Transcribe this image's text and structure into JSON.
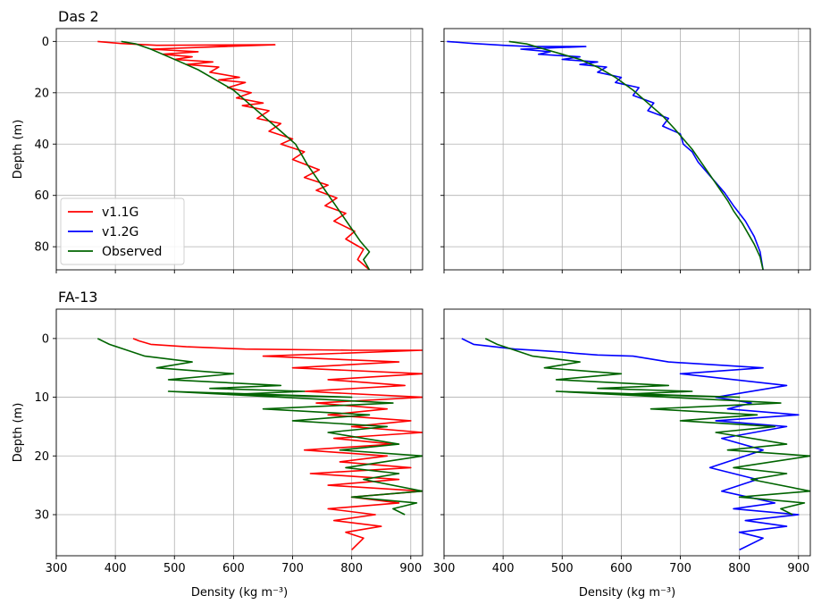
{
  "colors": {
    "v11": "#ff0000",
    "v12": "#0000ff",
    "observed": "#006400",
    "grid": "#b0b0b0",
    "axis": "#000000"
  },
  "legend": {
    "placement": "lower-left",
    "panel": 0,
    "entries": [
      {
        "label": "v1.1G",
        "color": "#ff0000"
      },
      {
        "label": "v1.2G",
        "color": "#0000ff"
      },
      {
        "label": "Observed",
        "color": "#006400"
      }
    ]
  },
  "chart_data": [
    {
      "type": "line",
      "title": "Das 2",
      "xlabel": "",
      "ylabel": "Depth (m)",
      "xlim": [
        300,
        920
      ],
      "ylim": [
        89,
        -5
      ],
      "xticks": [],
      "yticks": [
        "0",
        "20",
        "40",
        "60",
        "80"
      ],
      "grid": true,
      "series": [
        {
          "name": "v1.1G",
          "color": "#ff0000",
          "x": [
            370,
            410,
            470,
            670,
            460,
            540,
            480,
            530,
            500,
            565,
            520,
            575,
            560,
            610,
            575,
            620,
            590,
            630,
            605,
            650,
            615,
            660,
            640,
            680,
            660,
            700,
            680,
            720,
            700,
            745,
            720,
            760,
            740,
            775,
            755,
            790,
            770,
            805,
            790,
            820,
            810,
            830
          ],
          "y": [
            0,
            0.8,
            1.5,
            1.3,
            3,
            4,
            5,
            6,
            7,
            8,
            9,
            10,
            12,
            14,
            15,
            16,
            18,
            20,
            22,
            24,
            25,
            27,
            30,
            32,
            35,
            38,
            40,
            43,
            46,
            50,
            53,
            56,
            58,
            61,
            64,
            67,
            70,
            74,
            77,
            81,
            85,
            89
          ]
        },
        {
          "name": "v1.2G",
          "color": "#0000ff",
          "x": [],
          "y": []
        },
        {
          "name": "Observed",
          "color": "#006400",
          "x": [
            410,
            435,
            460,
            480,
            510,
            540,
            570,
            600,
            625,
            650,
            670,
            690,
            705,
            715,
            725,
            740,
            755,
            770,
            785,
            800,
            815,
            830,
            820,
            830
          ],
          "y": [
            0,
            1,
            3,
            5,
            8,
            11,
            15,
            19,
            24,
            29,
            33,
            37,
            40,
            44,
            48,
            53,
            58,
            63,
            68,
            73,
            78,
            82,
            85,
            89
          ]
        }
      ]
    },
    {
      "type": "line",
      "title": "",
      "xlabel": "",
      "ylabel": "",
      "xlim": [
        300,
        920
      ],
      "ylim": [
        89,
        -5
      ],
      "xticks": [],
      "yticks": [],
      "grid": true,
      "series": [
        {
          "name": "v1.1G",
          "color": "#ff0000",
          "x": [],
          "y": []
        },
        {
          "name": "v1.2G",
          "color": "#0000ff",
          "x": [
            305,
            350,
            400,
            445,
            540,
            430,
            480,
            460,
            530,
            500,
            560,
            530,
            575,
            560,
            600,
            590,
            630,
            620,
            655,
            645,
            680,
            670,
            700,
            705,
            720,
            730,
            745,
            760,
            775,
            790,
            810,
            825,
            835,
            840
          ],
          "y": [
            0,
            0.8,
            1.5,
            2,
            2,
            3,
            4,
            5,
            6,
            7,
            8,
            9,
            10,
            12,
            14,
            16,
            18,
            21,
            24,
            27,
            30,
            33,
            36,
            40,
            43,
            47,
            51,
            55,
            59,
            64,
            70,
            76,
            82,
            89
          ]
        },
        {
          "name": "Observed",
          "color": "#006400",
          "x": [
            410,
            440,
            470,
            500,
            530,
            560,
            590,
            620,
            645,
            670,
            690,
            705,
            720,
            735,
            750,
            765,
            780,
            790,
            805,
            815,
            825,
            835,
            840
          ],
          "y": [
            0,
            1,
            3,
            5,
            7,
            10,
            14,
            19,
            24,
            29,
            34,
            38,
            42,
            47,
            52,
            57,
            62,
            66,
            71,
            75,
            79,
            84,
            89
          ]
        }
      ]
    },
    {
      "type": "line",
      "title": "FA-13",
      "xlabel": "Density (kg m⁻³)",
      "ylabel": "Depth (m)",
      "xlim": [
        300,
        920
      ],
      "ylim": [
        37,
        -5
      ],
      "xticks": [
        "300",
        "400",
        "500",
        "600",
        "700",
        "800",
        "900"
      ],
      "yticks": [
        "0",
        "10",
        "20",
        "30"
      ],
      "grid": true,
      "series": [
        {
          "name": "v1.1G",
          "color": "#ff0000",
          "x": [
            430,
            440,
            460,
            520,
            620,
            800,
            920,
            650,
            880,
            700,
            920,
            760,
            890,
            720,
            920,
            740,
            860,
            760,
            900,
            800,
            920,
            770,
            870,
            720,
            860,
            780,
            900,
            730,
            880,
            760,
            920,
            800,
            880,
            760,
            840,
            770,
            850,
            790,
            820,
            800
          ],
          "y": [
            0,
            0.4,
            1,
            1.4,
            1.8,
            2,
            2,
            3,
            4,
            5,
            6,
            7,
            8,
            9,
            10,
            11,
            12,
            13,
            14,
            15,
            16,
            17,
            18,
            19,
            20,
            21,
            22,
            23,
            24,
            25,
            26,
            27,
            28,
            29,
            30,
            31,
            32,
            33,
            34,
            36
          ]
        },
        {
          "name": "v1.2G",
          "color": "#0000ff",
          "x": [],
          "y": []
        },
        {
          "name": "Observed",
          "color": "#006400",
          "x": [
            370,
            390,
            420,
            450,
            530,
            470,
            600,
            490,
            680,
            560,
            720,
            600,
            800,
            490,
            870,
            650,
            830,
            700,
            860,
            760,
            880,
            780,
            920,
            790,
            880,
            820,
            920,
            800,
            910,
            870,
            890
          ],
          "y": [
            0,
            1,
            2,
            3,
            4,
            5,
            6,
            7,
            8,
            8.5,
            9,
            9.5,
            10,
            9,
            11,
            12,
            13,
            14,
            15,
            16,
            18,
            19,
            20,
            22,
            23,
            24,
            26,
            27,
            28,
            29,
            30
          ]
        }
      ]
    },
    {
      "type": "line",
      "title": "",
      "xlabel": "Density (kg m⁻³)",
      "ylabel": "",
      "xlim": [
        300,
        920
      ],
      "ylim": [
        37,
        -5
      ],
      "xticks": [
        "300",
        "400",
        "500",
        "600",
        "700",
        "800",
        "900"
      ],
      "yticks": [],
      "grid": true,
      "series": [
        {
          "name": "v1.1G",
          "color": "#ff0000",
          "x": [],
          "y": []
        },
        {
          "name": "v1.2G",
          "color": "#0000ff",
          "x": [
            330,
            350,
            420,
            470,
            500,
            520,
            560,
            620,
            680,
            840,
            700,
            880,
            760,
            820,
            780,
            900,
            760,
            880,
            770,
            840,
            750,
            830,
            770,
            860,
            790,
            900,
            810,
            880,
            800,
            840,
            800
          ],
          "y": [
            0,
            1,
            1.8,
            2.1,
            2.3,
            2.5,
            2.8,
            3,
            4,
            5,
            6,
            8,
            10,
            11,
            12,
            13,
            14,
            15,
            17,
            19,
            22,
            24,
            26,
            28,
            29,
            30,
            31,
            32,
            33,
            34,
            36
          ]
        },
        {
          "name": "Observed",
          "color": "#006400",
          "x": [
            370,
            390,
            420,
            450,
            530,
            470,
            600,
            490,
            680,
            560,
            720,
            600,
            800,
            490,
            870,
            650,
            830,
            700,
            860,
            760,
            880,
            780,
            920,
            790,
            880,
            820,
            920,
            800,
            910,
            870,
            890
          ],
          "y": [
            0,
            1,
            2,
            3,
            4,
            5,
            6,
            7,
            8,
            8.5,
            9,
            9.5,
            10,
            9,
            11,
            12,
            13,
            14,
            15,
            16,
            18,
            19,
            20,
            22,
            23,
            24,
            26,
            27,
            28,
            29,
            30
          ]
        }
      ]
    }
  ]
}
